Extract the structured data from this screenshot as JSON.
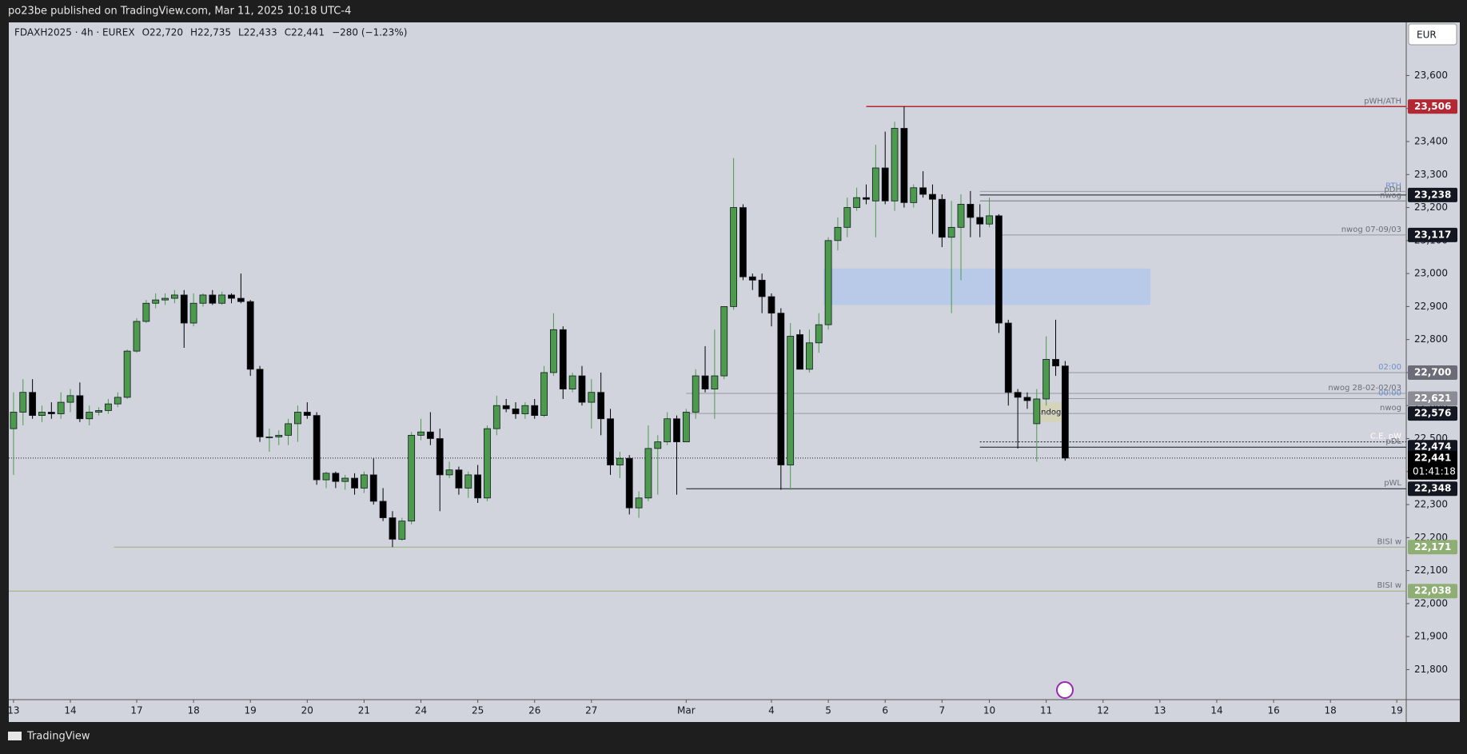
{
  "header": {
    "title": "po23be published on TradingView.com, Mar 11, 2025 10:18 UTC-4"
  },
  "footer": {
    "brand": "TradingView"
  },
  "chart_data": {
    "type": "candlestick",
    "legend_text": [
      "FDAXH2025 · 4h · EUREX",
      "O22,720",
      "H22,735",
      "L22,433",
      "C22,441",
      "−280 (−1.23%)"
    ],
    "currency": "EUR",
    "up_color": "#4c9a4c",
    "down_color": "#000000",
    "open": [
      22530,
      22580,
      22640,
      22570,
      22580,
      22575,
      22610,
      22630,
      22560,
      22580,
      22585,
      22605,
      22625,
      22765,
      22855,
      22910,
      22920,
      22925,
      22935,
      22850,
      22910,
      22935,
      22910,
      22935,
      22925,
      22915,
      22710,
      22505,
      22505,
      22510,
      22545,
      22580,
      22570,
      22375,
      22395,
      22370,
      22380,
      22350,
      22390,
      22310,
      22260,
      22195,
      22250,
      22510,
      22520,
      22500,
      22390,
      22405,
      22350,
      22390,
      22320,
      22530,
      22600,
      22590,
      22575,
      22600,
      22570,
      22700,
      22830,
      22650,
      22690,
      22610,
      22640,
      22560,
      22420,
      22440,
      22290,
      22320,
      22470,
      22490,
      22560,
      22490,
      22580,
      22690,
      22650,
      22690,
      22900,
      23200,
      22990,
      22980,
      22930,
      22880,
      22420,
      22815,
      22710,
      22790,
      22845,
      23100,
      23140,
      23200,
      23230,
      23220,
      23320,
      23220,
      23440,
      23215,
      23260,
      23240,
      23225,
      23110,
      23140,
      23210,
      23170,
      23150,
      23175,
      22850,
      22640,
      22625,
      22545,
      22620,
      22740,
      22720
    ],
    "high": [
      22640,
      22680,
      22680,
      22600,
      22610,
      22640,
      22650,
      22670,
      22600,
      22595,
      22620,
      22640,
      22770,
      22865,
      22920,
      22940,
      22940,
      22950,
      22950,
      22940,
      22940,
      22950,
      22945,
      22940,
      23000,
      22920,
      22720,
      22530,
      22525,
      22560,
      22600,
      22610,
      22580,
      22400,
      22400,
      22390,
      22395,
      22400,
      22440,
      22350,
      22280,
      22260,
      22520,
      22560,
      22580,
      22530,
      22430,
      22415,
      22400,
      22420,
      22540,
      22630,
      22620,
      22610,
      22610,
      22620,
      22720,
      22880,
      22840,
      22700,
      22720,
      22680,
      22700,
      22590,
      22460,
      22450,
      22340,
      22540,
      22510,
      22580,
      22570,
      22590,
      22710,
      22780,
      22830,
      22900,
      23350,
      23210,
      23000,
      23000,
      22940,
      22895,
      22850,
      22830,
      22830,
      22880,
      23110,
      23170,
      23230,
      23260,
      23270,
      23390,
      23430,
      23460,
      23506,
      23270,
      23310,
      23270,
      23240,
      23220,
      23240,
      23250,
      23210,
      23230,
      23180,
      22860,
      22650,
      22640,
      22650,
      22810,
      22860,
      22735
    ],
    "low": [
      22390,
      22540,
      22560,
      22550,
      22560,
      22560,
      22580,
      22550,
      22540,
      22570,
      22575,
      22595,
      22620,
      22760,
      22850,
      22895,
      22905,
      22910,
      22775,
      22840,
      22900,
      22905,
      22905,
      22910,
      22910,
      22690,
      22490,
      22460,
      22480,
      22480,
      22490,
      22560,
      22360,
      22350,
      22350,
      22345,
      22330,
      22335,
      22300,
      22250,
      22171,
      22190,
      22240,
      22495,
      22480,
      22280,
      22380,
      22330,
      22320,
      22305,
      22310,
      22510,
      22580,
      22560,
      22560,
      22560,
      22565,
      22690,
      22620,
      22640,
      22600,
      22530,
      22510,
      22390,
      22380,
      22270,
      22260,
      22310,
      22330,
      22480,
      22330,
      22490,
      22560,
      22640,
      22560,
      22680,
      22890,
      22980,
      22950,
      22880,
      22840,
      22345,
      22345,
      22710,
      22700,
      22760,
      22830,
      23070,
      23110,
      23190,
      23210,
      23110,
      23210,
      23190,
      23200,
      23200,
      23230,
      23120,
      23080,
      22880,
      22980,
      23110,
      23110,
      23140,
      22820,
      22600,
      22470,
      22590,
      22430,
      22600,
      22690,
      22433
    ],
    "close": [
      22580,
      22640,
      22570,
      22580,
      22575,
      22610,
      22630,
      22560,
      22580,
      22585,
      22605,
      22625,
      22765,
      22855,
      22910,
      22920,
      22925,
      22935,
      22850,
      22910,
      22935,
      22910,
      22935,
      22925,
      22915,
      22710,
      22505,
      22505,
      22510,
      22545,
      22580,
      22570,
      22375,
      22395,
      22370,
      22380,
      22350,
      22390,
      22310,
      22260,
      22195,
      22250,
      22510,
      22520,
      22500,
      22390,
      22405,
      22350,
      22390,
      22320,
      22530,
      22600,
      22590,
      22575,
      22600,
      22570,
      22700,
      22830,
      22650,
      22690,
      22610,
      22640,
      22560,
      22420,
      22440,
      22290,
      22320,
      22470,
      22490,
      22560,
      22490,
      22580,
      22690,
      22650,
      22690,
      22900,
      23200,
      22990,
      22980,
      22930,
      22880,
      22420,
      22810,
      22710,
      22790,
      22845,
      23100,
      23140,
      23200,
      23230,
      23225,
      23320,
      23220,
      23440,
      23215,
      23260,
      23240,
      23225,
      23110,
      23140,
      23210,
      23170,
      23150,
      23175,
      22850,
      22640,
      22625,
      22615,
      22620,
      22740,
      22720,
      22441
    ],
    "xlim": [
      -0.5,
      147
    ],
    "xticks": [
      {
        "value": 0,
        "label": "13"
      },
      {
        "value": 6,
        "label": "14"
      },
      {
        "value": 13,
        "label": "17"
      },
      {
        "value": 19,
        "label": "18"
      },
      {
        "value": 25,
        "label": "19"
      },
      {
        "value": 31,
        "label": "20"
      },
      {
        "value": 37,
        "label": "21"
      },
      {
        "value": 43,
        "label": "24"
      },
      {
        "value": 49,
        "label": "25"
      },
      {
        "value": 55,
        "label": "26"
      },
      {
        "value": 61,
        "label": "27"
      },
      {
        "value": 71,
        "label": "Mar"
      },
      {
        "value": 80,
        "label": "4"
      },
      {
        "value": 86,
        "label": "5"
      },
      {
        "value": 92,
        "label": "6"
      },
      {
        "value": 98,
        "label": "7"
      },
      {
        "value": 103,
        "label": "10"
      },
      {
        "value": 109,
        "label": "11"
      },
      {
        "value": 115,
        "label": "12"
      },
      {
        "value": 121,
        "label": "13"
      },
      {
        "value": 127,
        "label": "14"
      },
      {
        "value": 133,
        "label": "16"
      },
      {
        "value": 139,
        "label": "18"
      },
      {
        "value": 146,
        "label": "19"
      }
    ],
    "ylim": [
      21709,
      23761
    ],
    "yticks": [
      {
        "value": 21800,
        "label": "21,800"
      },
      {
        "value": 21900,
        "label": "21,900"
      },
      {
        "value": 22000,
        "label": "22,000"
      },
      {
        "value": 22100,
        "label": "22,100"
      },
      {
        "value": 22200,
        "label": "22,200"
      },
      {
        "value": 22300,
        "label": "22,300"
      },
      {
        "value": 22400,
        "label": "22,400"
      },
      {
        "value": 22500,
        "label": "22,500"
      },
      {
        "value": 22600,
        "label": "22,600"
      },
      {
        "value": 22700,
        "label": "22,700"
      },
      {
        "value": 22800,
        "label": "22,800"
      },
      {
        "value": 22900,
        "label": "22,900"
      },
      {
        "value": 23000,
        "label": "23,000"
      },
      {
        "value": 23100,
        "label": "23,100"
      },
      {
        "value": 23200,
        "label": "23,200"
      },
      {
        "value": 23300,
        "label": "23,300"
      },
      {
        "value": 23400,
        "label": "23,400"
      },
      {
        "value": 23500,
        "label": "23,500"
      },
      {
        "value": 23600,
        "label": "23,600"
      }
    ],
    "grid": false,
    "zones": [
      {
        "start": 85.5,
        "end": 120,
        "top": 23015,
        "bottom": 22905,
        "color": "#b4c8ea"
      },
      {
        "start": 108.2,
        "end": 110.6,
        "top": 22610,
        "bottom": 22550,
        "color": "#d6d3b5",
        "label": "ndog"
      }
    ],
    "levels": [
      {
        "label": "pWH/ATH",
        "value": 23506,
        "value_label": "23,506",
        "start": 90,
        "color": "#b22833",
        "tag_color": "#b22833",
        "dashed": false
      },
      {
        "label": "RTH",
        "value": 23249,
        "start": 102,
        "color": "#9aa0ac",
        "text_color": "#6f8fc9",
        "dashed": false
      },
      {
        "label": "pDH",
        "value": 23238,
        "value_label": "23,238",
        "start": 102,
        "color": "#131722",
        "tag_color": "#131722",
        "dashed": false
      },
      {
        "label": "nwog",
        "value": 23220,
        "start": 102,
        "color": "#787b86",
        "dashed": false
      },
      {
        "label": "nwog 07-09/03",
        "value": 23117,
        "value_label": "23,117",
        "start": 104,
        "color": "#9598a1",
        "tag_color": "#131722",
        "dashed": false
      },
      {
        "label": "02:00",
        "value": 22700,
        "value_label": "22,700",
        "start": 111,
        "color": "#9598a1",
        "text_color": "#6f8fc9",
        "tag_color": "#6a6d78",
        "dashed": false
      },
      {
        "label": "nwog 28-02-02/03",
        "value": 22637,
        "start": 71,
        "color": "#9598a1",
        "dashed": false
      },
      {
        "label": "00:00",
        "value": 22621,
        "value_label": "22,621",
        "start": 111,
        "color": "#9598a1",
        "text_color": "#6f8fc9",
        "tag_color": "#8a8d96",
        "dashed": false
      },
      {
        "label": "nwog",
        "value": 22576,
        "value_label": "22,576",
        "start": 71,
        "color": "#9598a1",
        "tag_color": "#131722",
        "dashed": false
      },
      {
        "label": "C.E. pW",
        "value": 22490,
        "start": 102,
        "color": "#131722",
        "text_color": "#ffffff",
        "dashed": true
      },
      {
        "label": "pDL",
        "value": 22474,
        "value_label": "22,474",
        "start": 102,
        "color": "#131722",
        "tag_color": "#131722",
        "dashed": false
      },
      {
        "label": "pWL",
        "value": 22348,
        "value_label": "22,348",
        "start": 71,
        "color": "#131722",
        "tag_color": "#131722",
        "dashed": false
      },
      {
        "label": "BISI w",
        "value": 22171,
        "value_label": "22,171",
        "start": 10.6,
        "color": "#9bb07a",
        "tag_color": "#8fae74",
        "dashed": false
      },
      {
        "label": "BISI w",
        "value": 22038,
        "value_label": "22,038",
        "start": -0.5,
        "color": "#9bb07a",
        "tag_color": "#8fae74",
        "dashed": false
      }
    ],
    "current": {
      "value": 22441,
      "value_label": "22,441",
      "countdown": "01:41:18"
    }
  }
}
